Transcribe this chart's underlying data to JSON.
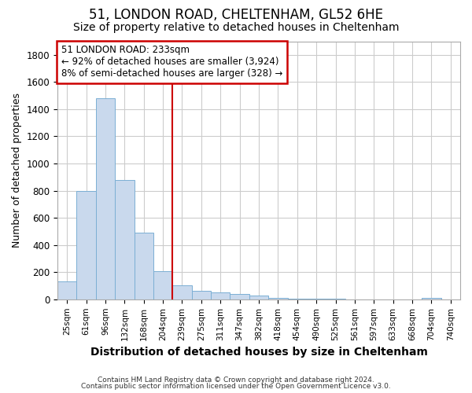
{
  "title1": "51, LONDON ROAD, CHELTENHAM, GL52 6HE",
  "title2": "Size of property relative to detached houses in Cheltenham",
  "xlabel": "Distribution of detached houses by size in Cheltenham",
  "ylabel": "Number of detached properties",
  "categories": [
    "25sqm",
    "61sqm",
    "96sqm",
    "132sqm",
    "168sqm",
    "204sqm",
    "239sqm",
    "275sqm",
    "311sqm",
    "347sqm",
    "382sqm",
    "418sqm",
    "454sqm",
    "490sqm",
    "525sqm",
    "561sqm",
    "597sqm",
    "633sqm",
    "668sqm",
    "704sqm",
    "740sqm"
  ],
  "values": [
    130,
    800,
    1480,
    880,
    490,
    205,
    105,
    65,
    50,
    38,
    25,
    10,
    5,
    2,
    2,
    1,
    1,
    1,
    0,
    12,
    0
  ],
  "bar_color": "#c9d9ed",
  "bar_edge_color": "#7bafd4",
  "annotation_text_line1": "51 LONDON ROAD: 233sqm",
  "annotation_text_line2": "← 92% of detached houses are smaller (3,924)",
  "annotation_text_line3": "8% of semi-detached houses are larger (328) →",
  "annotation_box_color": "#ffffff",
  "annotation_border_color": "#cc0000",
  "vline_color": "#cc0000",
  "vline_x": 5.5,
  "ylim": [
    0,
    1900
  ],
  "yticks": [
    0,
    200,
    400,
    600,
    800,
    1000,
    1200,
    1400,
    1600,
    1800
  ],
  "footer1": "Contains HM Land Registry data © Crown copyright and database right 2024.",
  "footer2": "Contains public sector information licensed under the Open Government Licence v3.0.",
  "bg_color": "#ffffff",
  "plot_bg_color": "#ffffff",
  "grid_color": "#cccccc",
  "title1_fontsize": 12,
  "title2_fontsize": 10,
  "xlabel_fontsize": 10,
  "ylabel_fontsize": 9
}
